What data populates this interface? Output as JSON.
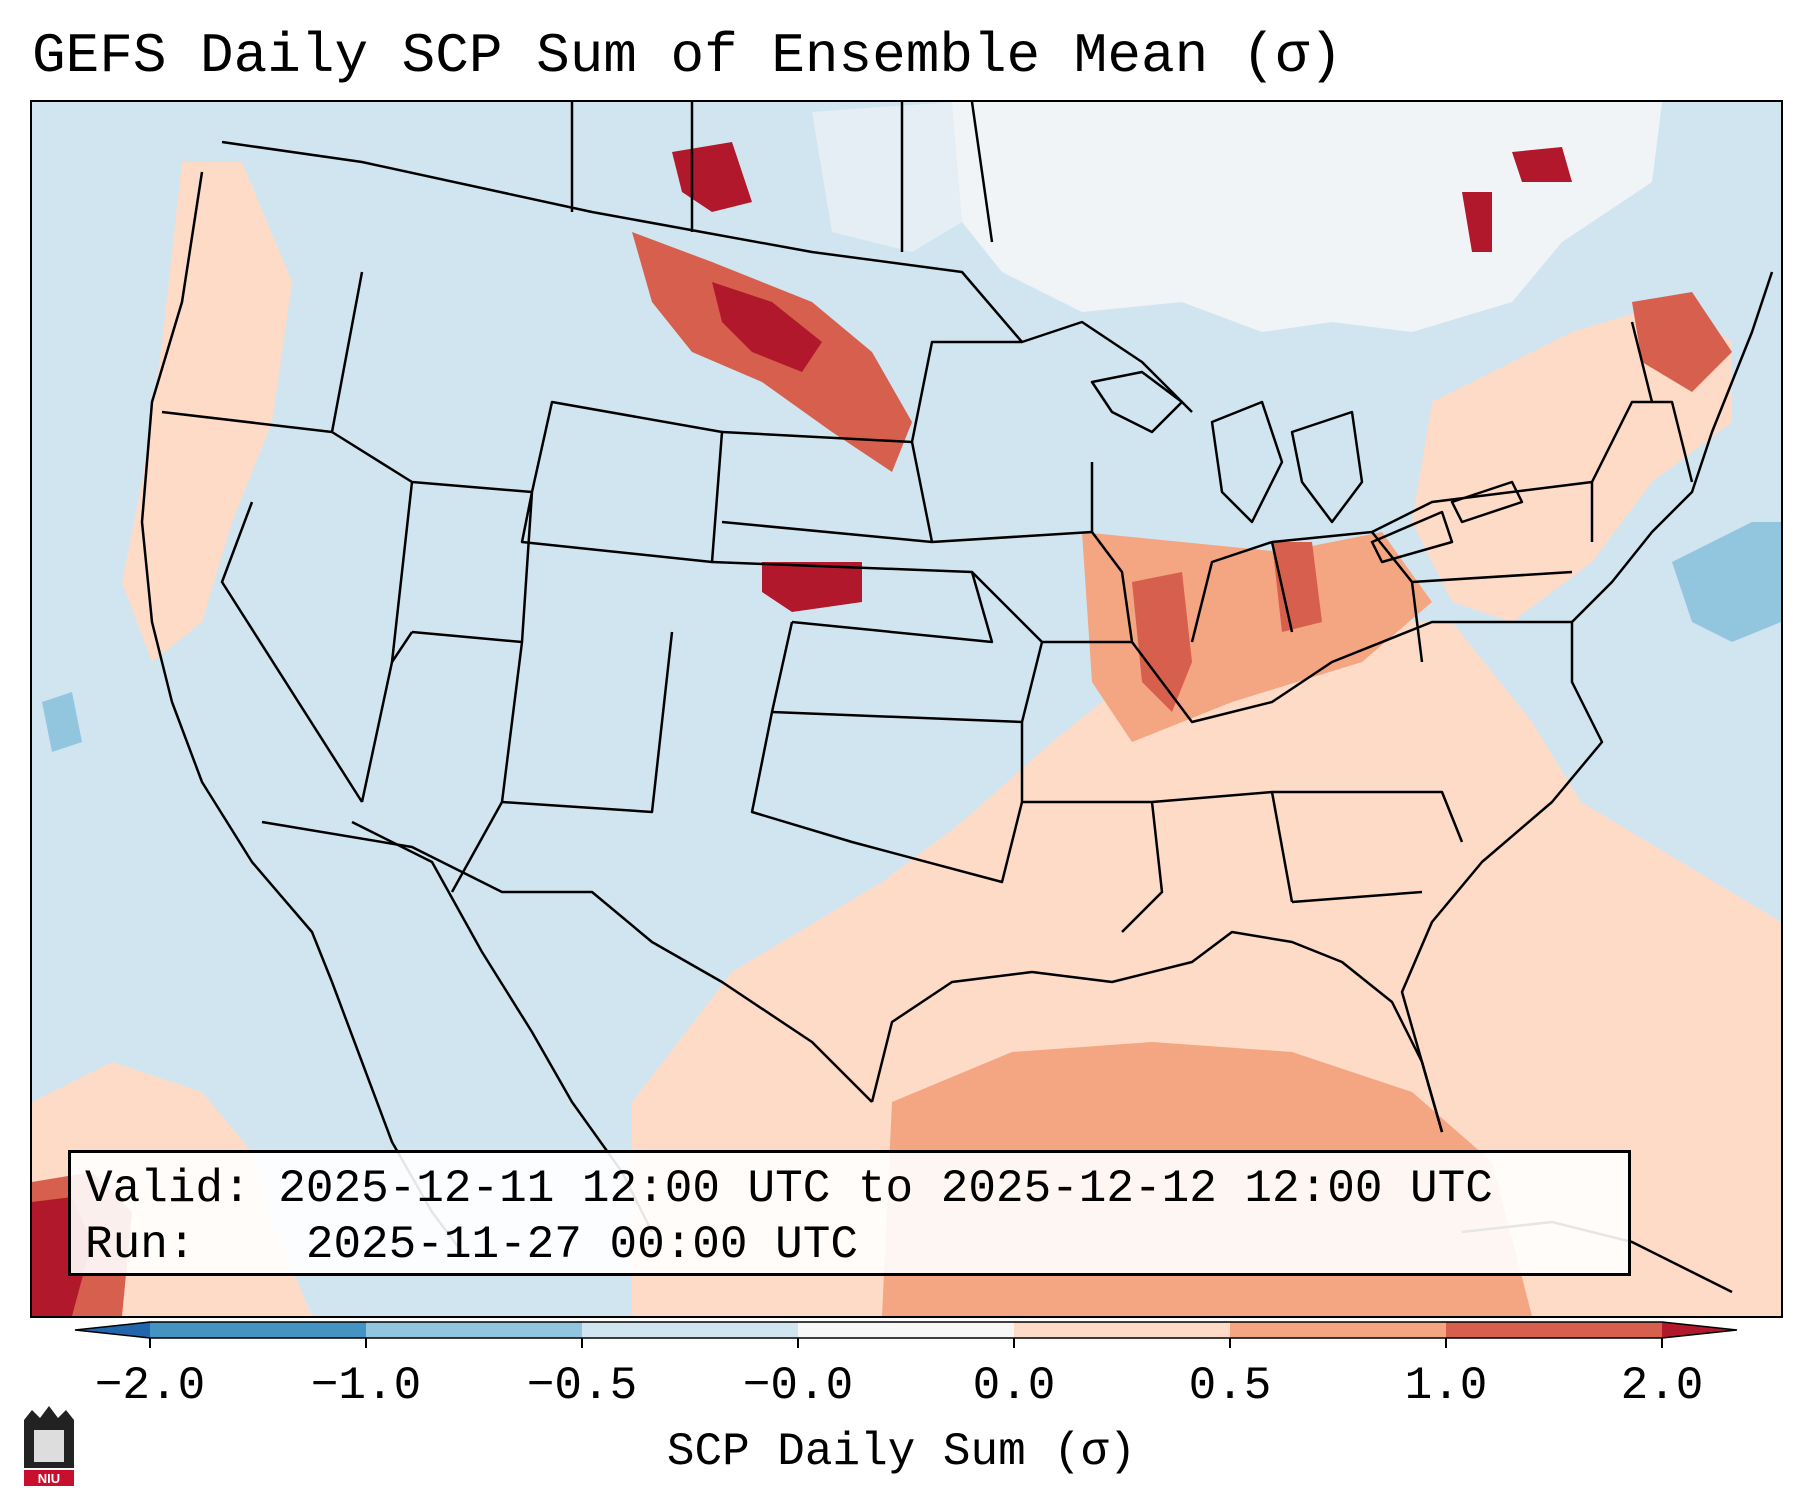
{
  "title": "GEFS Daily SCP Sum of Ensemble Mean (σ)",
  "info": {
    "valid_label": "Valid:",
    "valid_value": "2025-12-11 12:00 UTC to 2025-12-12 12:00 UTC",
    "run_label": "Run:",
    "run_value": "2025-11-27 00:00 UTC"
  },
  "colorbar": {
    "label": "SCP Daily Sum (σ)",
    "ticks": [
      "−2.0",
      "−1.0",
      "−0.5",
      "−0.0",
      "0.0",
      "0.5",
      "1.0",
      "2.0"
    ],
    "bins": [
      {
        "range": "-2.0 to -1.0",
        "color": "#4393c3"
      },
      {
        "range": "-1.0 to -0.5",
        "color": "#92c5de"
      },
      {
        "range": "-0.5 to -0.0",
        "color": "#d1e5f0"
      },
      {
        "range": "-0.0 to 0.0",
        "color": "#f7f7f7"
      },
      {
        "range": "0.0 to 0.5",
        "color": "#fddbc7"
      },
      {
        "range": "0.5 to 1.0",
        "color": "#f4a582"
      },
      {
        "range": "1.0 to 2.0",
        "color": "#d6604d"
      }
    ],
    "under_color": "#2166ac",
    "over_color": "#b2182b"
  },
  "map": {
    "projection": "Lambert Conformal, CONUS",
    "background_value_color": "#d1e5f0",
    "features": [
      "state borders",
      "country borders",
      "coastlines"
    ]
  },
  "logo": {
    "text": "NIU",
    "color": "#c8102e"
  }
}
